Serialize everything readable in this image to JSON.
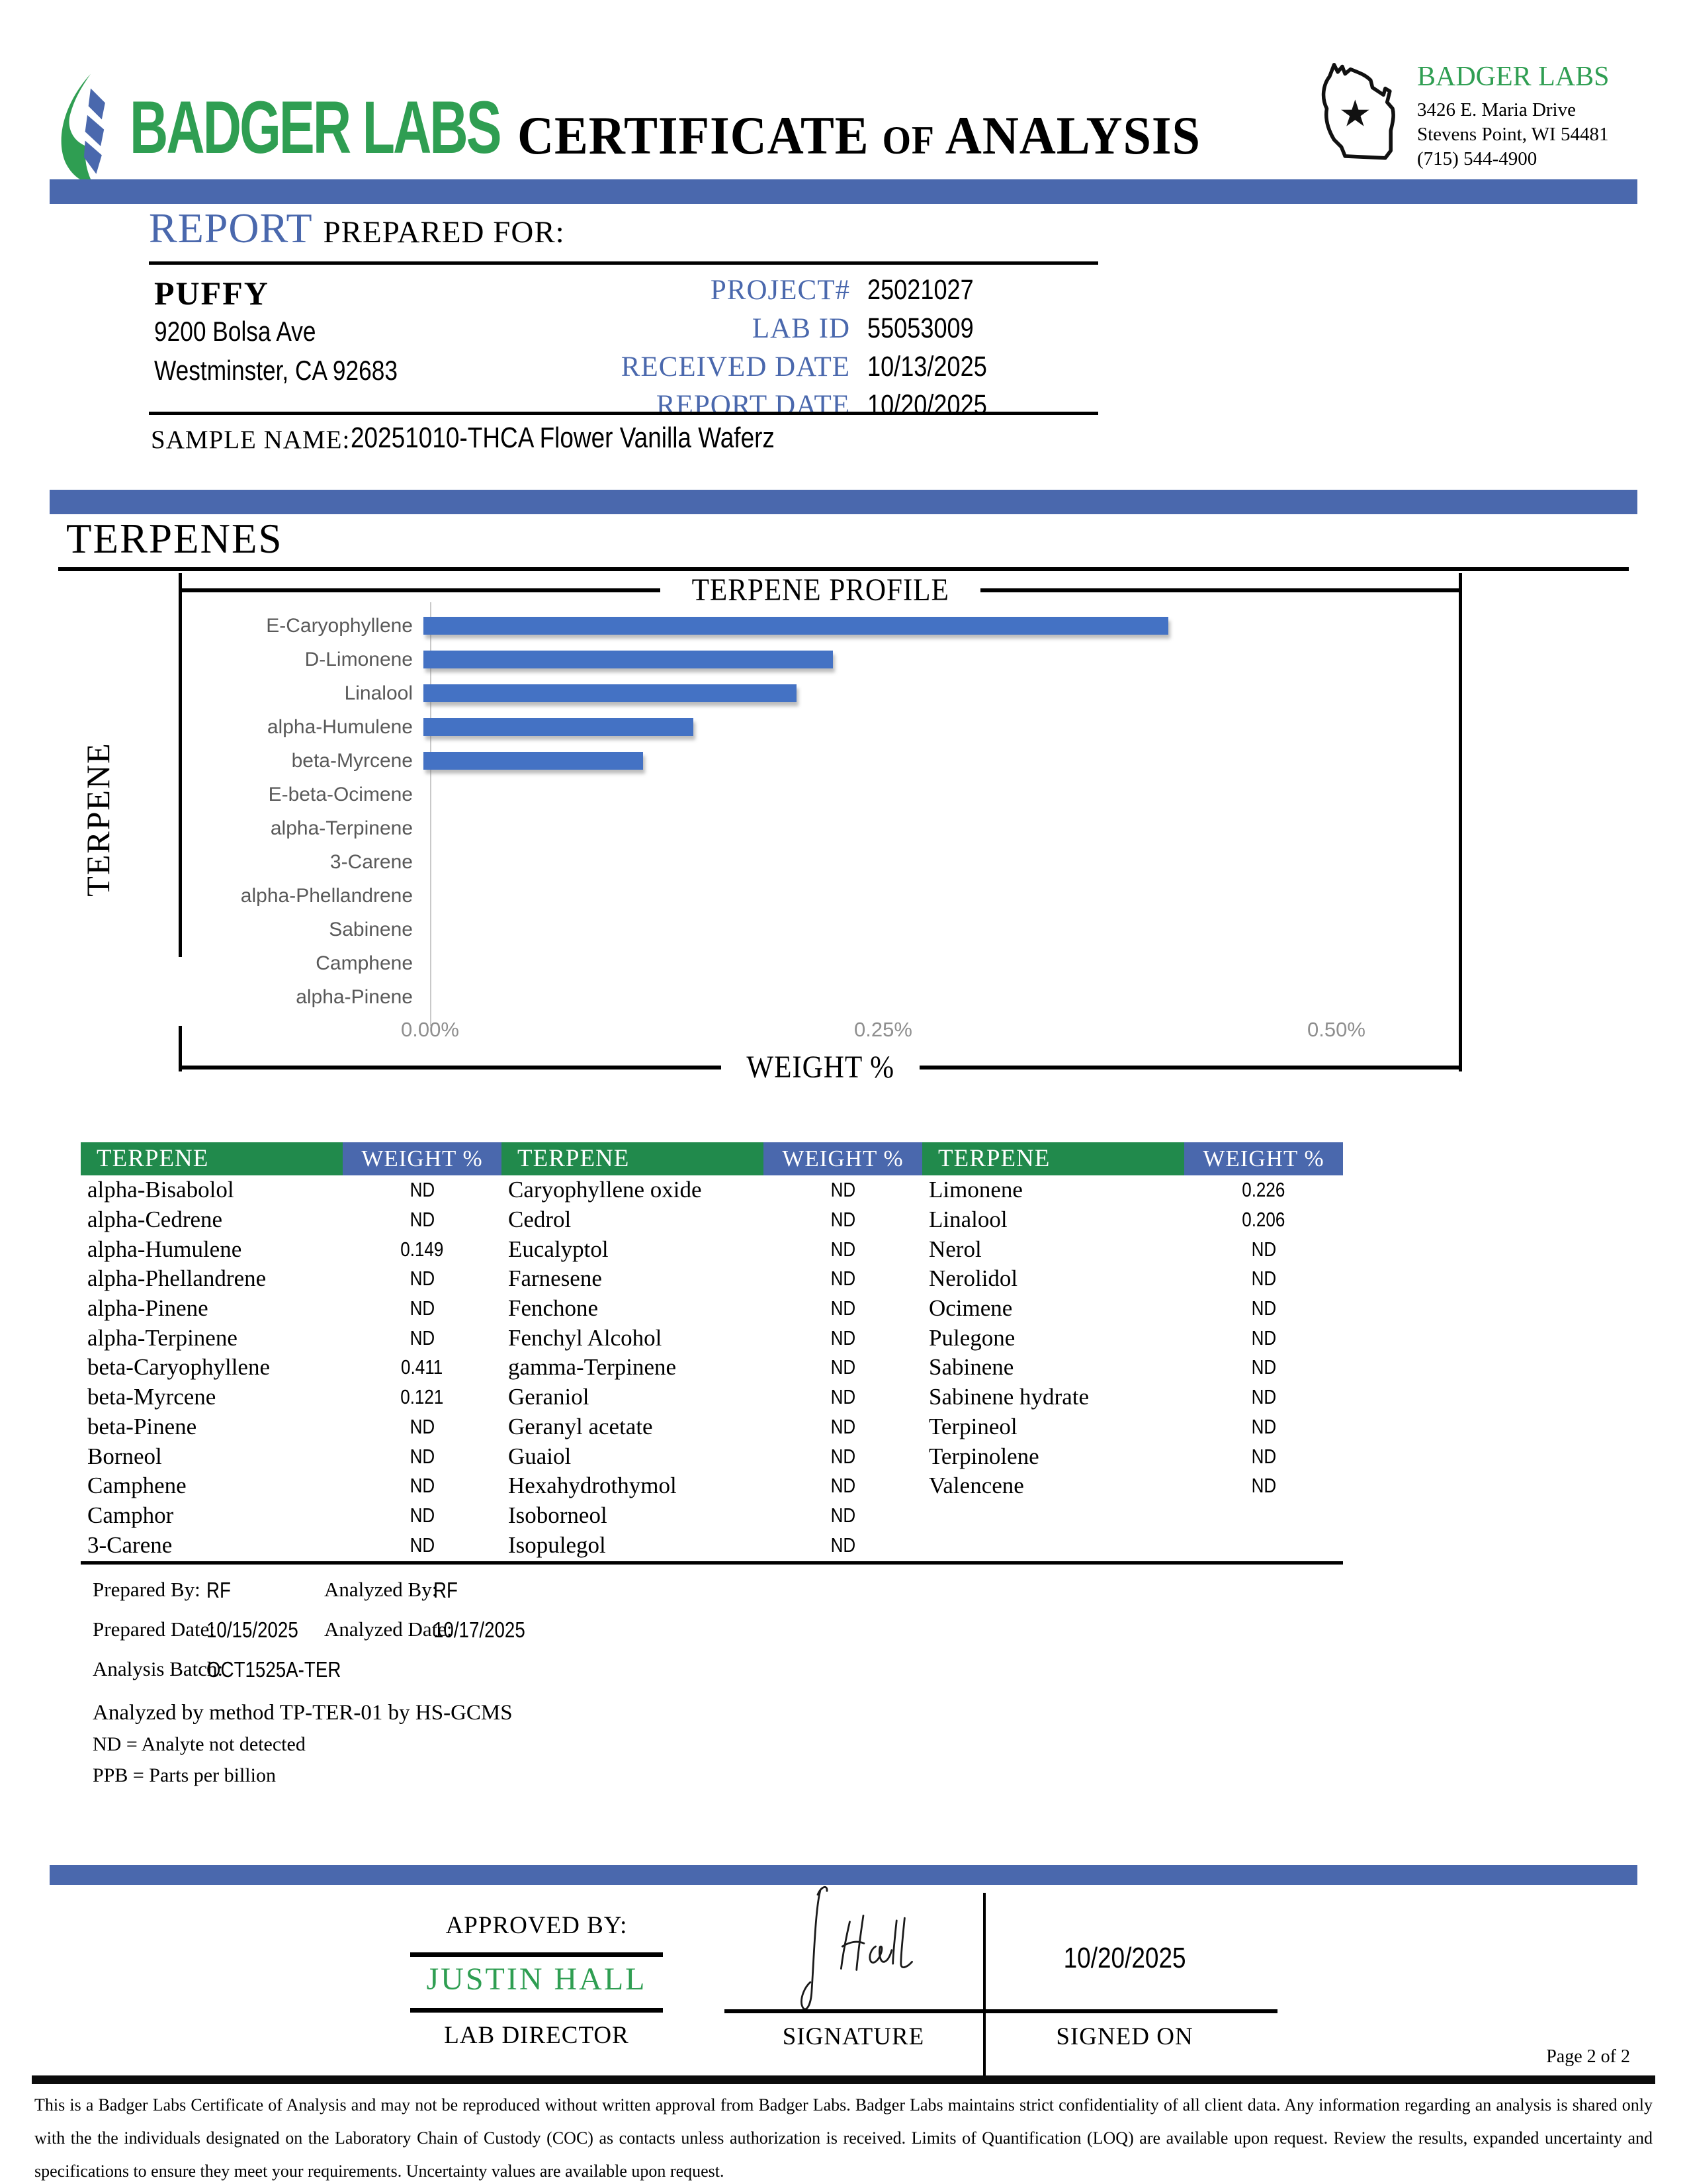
{
  "header": {
    "logo_text": "BADGER LABS",
    "title_part1": "CERTIFICATE",
    "title_of": "OF",
    "title_part2": "ANALYSIS",
    "lab_name": "BADGER LABS",
    "address_line1": "3426 E. Maria Drive",
    "address_line2": "Stevens Point, WI 54481",
    "phone": "(715) 544-4900"
  },
  "report_info": {
    "section_title_accent": "REPORT",
    "section_title_rest": "PREPARED FOR:",
    "client_name": "PUFFY",
    "client_address1": "9200 Bolsa Ave",
    "client_address2": "Westminster, CA 92683",
    "fields": [
      {
        "label": "PROJECT#",
        "value": "25021027"
      },
      {
        "label": "LAB ID",
        "value": "55053009"
      },
      {
        "label": "RECEIVED DATE",
        "value": "10/13/2025"
      },
      {
        "label": "REPORT DATE",
        "value": "10/20/2025"
      }
    ],
    "sample_name_label": "SAMPLE NAME:",
    "sample_name": "20251010-THCA Flower Vanilla Waferz"
  },
  "section": {
    "title": "TERPENES"
  },
  "chart_data": {
    "type": "bar",
    "orientation": "horizontal",
    "title": "TERPENE PROFILE",
    "xlabel": "WEIGHT %",
    "ylabel": "TERPENE",
    "categories": [
      "E-Caryophyllene",
      "D-Limonene",
      "Linalool",
      "alpha-Humulene",
      "beta-Myrcene",
      "E-beta-Ocimene",
      "alpha-Terpinene",
      "3-Carene",
      "alpha-Phellandrene",
      "Sabinene",
      "Camphene",
      "alpha-Pinene"
    ],
    "values": [
      0.411,
      0.226,
      0.206,
      0.149,
      0.121,
      0,
      0,
      0,
      0,
      0,
      0,
      0
    ],
    "xlim": [
      0,
      0.55
    ],
    "ticks": [
      "0.00%",
      "0.25%",
      "0.50%"
    ],
    "tick_values": [
      0,
      0.25,
      0.5
    ],
    "grid": false,
    "legend": "none",
    "bar_color": "#4472c4"
  },
  "results_table": {
    "header": {
      "terpene": "TERPENE",
      "weight": "WEIGHT %"
    },
    "columns": [
      {
        "rows": [
          [
            "alpha-Bisabolol",
            "ND"
          ],
          [
            "alpha-Cedrene",
            "ND"
          ],
          [
            "alpha-Humulene",
            "0.149"
          ],
          [
            "alpha-Phellandrene",
            "ND"
          ],
          [
            "alpha-Pinene",
            "ND"
          ],
          [
            "alpha-Terpinene",
            "ND"
          ],
          [
            "beta-Caryophyllene",
            "0.411"
          ],
          [
            "beta-Myrcene",
            "0.121"
          ],
          [
            "beta-Pinene",
            "ND"
          ],
          [
            "Borneol",
            "ND"
          ],
          [
            "Camphene",
            "ND"
          ],
          [
            "Camphor",
            "ND"
          ],
          [
            "3-Carene",
            "ND"
          ]
        ]
      },
      {
        "rows": [
          [
            "Caryophyllene oxide",
            "ND"
          ],
          [
            "Cedrol",
            "ND"
          ],
          [
            "Eucalyptol",
            "ND"
          ],
          [
            "Farnesene",
            "ND"
          ],
          [
            "Fenchone",
            "ND"
          ],
          [
            "Fenchyl Alcohol",
            "ND"
          ],
          [
            "gamma-Terpinene",
            "ND"
          ],
          [
            "Geraniol",
            "ND"
          ],
          [
            "Geranyl acetate",
            "ND"
          ],
          [
            "Guaiol",
            "ND"
          ],
          [
            "Hexahydrothymol",
            "ND"
          ],
          [
            "Isoborneol",
            "ND"
          ],
          [
            "Isopulegol",
            "ND"
          ]
        ]
      },
      {
        "rows": [
          [
            "Limonene",
            "0.226"
          ],
          [
            "Linalool",
            "0.206"
          ],
          [
            "Nerol",
            "ND"
          ],
          [
            "Nerolidol",
            "ND"
          ],
          [
            "Ocimene",
            "ND"
          ],
          [
            "Pulegone",
            "ND"
          ],
          [
            "Sabinene",
            "ND"
          ],
          [
            "Sabinene hydrate",
            "ND"
          ],
          [
            "Terpineol",
            "ND"
          ],
          [
            "Terpinolene",
            "ND"
          ],
          [
            "Valencene",
            "ND"
          ]
        ]
      }
    ]
  },
  "analysis_meta": {
    "prepared_by_label": "Prepared By:",
    "prepared_by": "RF",
    "analyzed_by_label": "Analyzed By:",
    "analyzed_by": "RF",
    "prepared_date_label": "Prepared Date:",
    "prepared_date": "10/15/2025",
    "analyzed_date_label": "Analyzed Date:",
    "analyzed_date": "10/17/2025",
    "analysis_batch_label": "Analysis Batch:",
    "analysis_batch": "OCT1525A-TER",
    "method_note": "Analyzed by method TP-TER-01 by HS-GCMS",
    "nd_note": "ND = Analyte not detected",
    "ppb_note": "PPB = Parts per billion"
  },
  "approval": {
    "approved_by_label": "APPROVED BY:",
    "approver_name": "JUSTIN HALL",
    "approver_title": "LAB DIRECTOR",
    "signature_label": "SIGNATURE",
    "signed_on_label": "SIGNED ON",
    "signed_on_date": "10/20/2025"
  },
  "footer": {
    "page_number": "Page 2 of 2",
    "disclaimer": "This is a Badger Labs Certificate of Analysis and may not be reproduced without written approval from Badger Labs. Badger Labs maintains strict confidentiality of all client data. Any information regarding an analysis is shared only with the the individuals designated on the Laboratory Chain of Custody (COC) as contacts unless authorization is received. Limits of Quantification (LOQ) are available upon request. Review the results, expanded uncertainty and specifications to ensure they meet your requirements. Uncertainty values are available upon request."
  },
  "colors": {
    "accent_blue": "#4a68ad",
    "table_green": "#218a4c",
    "logo_green": "#2f9e52",
    "bar_blue": "#4472c4"
  }
}
